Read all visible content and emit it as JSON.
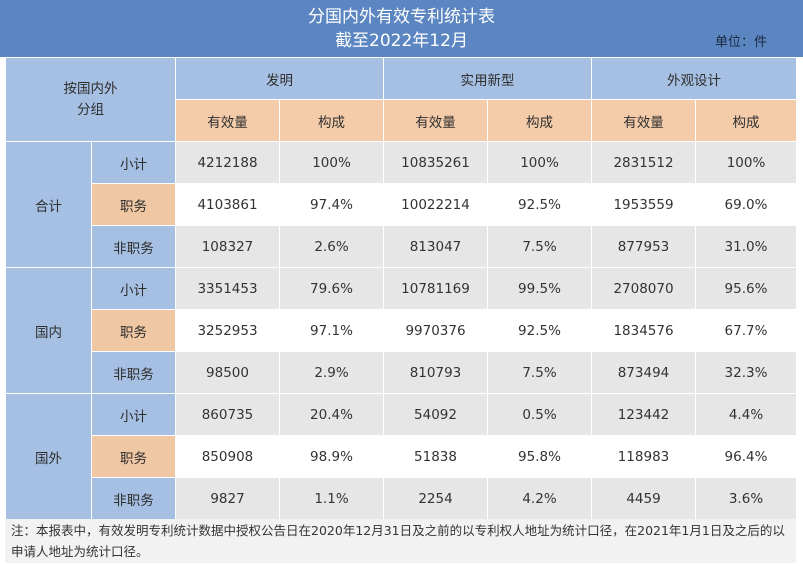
{
  "title": {
    "line1": "分国内外有效专利统计表",
    "line2": "截至2022年12月",
    "unit": "单位：件"
  },
  "header": {
    "corner": [
      "按国内外",
      "分组"
    ],
    "groups": [
      "发明",
      "实用新型",
      "外观设计"
    ],
    "sub": [
      "有效量",
      "构成",
      "有效量",
      "构成",
      "有效量",
      "构成"
    ]
  },
  "sections": [
    {
      "label": "合计",
      "rows": [
        {
          "name": "小计",
          "values": [
            "4212188",
            "100%",
            "10835261",
            "100%",
            "2831512",
            "100%"
          ]
        },
        {
          "name": "职务",
          "values": [
            "4103861",
            "97.4%",
            "10022214",
            "92.5%",
            "1953559",
            "69.0%"
          ]
        },
        {
          "name": "非职务",
          "values": [
            "108327",
            "2.6%",
            "813047",
            "7.5%",
            "877953",
            "31.0%"
          ]
        }
      ]
    },
    {
      "label": "国内",
      "rows": [
        {
          "name": "小计",
          "values": [
            "3351453",
            "79.6%",
            "10781169",
            "99.5%",
            "2708070",
            "95.6%"
          ]
        },
        {
          "name": "职务",
          "values": [
            "3252953",
            "97.1%",
            "9970376",
            "92.5%",
            "1834576",
            "67.7%"
          ]
        },
        {
          "name": "非职务",
          "values": [
            "98500",
            "2.9%",
            "810793",
            "7.5%",
            "873494",
            "32.3%"
          ]
        }
      ]
    },
    {
      "label": "国外",
      "rows": [
        {
          "name": "小计",
          "values": [
            "860735",
            "20.4%",
            "54092",
            "0.5%",
            "123442",
            "4.4%"
          ]
        },
        {
          "name": "职务",
          "values": [
            "850908",
            "98.9%",
            "51838",
            "95.8%",
            "118983",
            "96.4%"
          ]
        },
        {
          "name": "非职务",
          "values": [
            "9827",
            "1.1%",
            "2254",
            "4.2%",
            "4459",
            "3.6%"
          ]
        }
      ]
    }
  ],
  "note": "注：本报表中，有效发明专利统计数据中授权公告日在2020年12月31日及之前的以专利权人地址为统计口径，在2021年1月1日及之后的以申请人地址为统计口径。"
}
